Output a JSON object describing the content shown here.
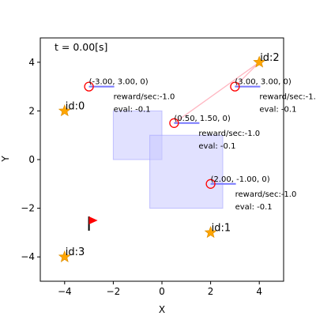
{
  "chart_data": {
    "type": "scatter",
    "time_label": "t = 0.00[s]",
    "xlabel": "X",
    "ylabel": "Y",
    "xlim": [
      -5,
      5
    ],
    "ylim": [
      -5,
      5
    ],
    "xticks": [
      -4,
      -2,
      0,
      2,
      4
    ],
    "yticks": [
      -4,
      -2,
      0,
      2,
      4
    ],
    "grid": false,
    "colors": {
      "goal": "#ffa500",
      "agent": "#ff0000",
      "heading": "#7878ff",
      "link": "#ffb6c1",
      "obstacle_fill": "#c8c8ff",
      "obstacle_edge": "#a0a0ff",
      "flag": "#ff0000"
    },
    "goals": [
      {
        "label": "id:0",
        "x": -4.0,
        "y": 2.0
      },
      {
        "label": "id:1",
        "x": 2.0,
        "y": -3.0
      },
      {
        "label": "id:2",
        "x": 4.0,
        "y": 4.0
      },
      {
        "label": "id:3",
        "x": -4.0,
        "y": -4.0
      }
    ],
    "obstacles": [
      {
        "x0": -2.0,
        "y0": 0.0,
        "x1": 0.0,
        "y1": 2.0
      },
      {
        "x0": -0.5,
        "y0": -2.0,
        "x1": 2.5,
        "y1": 1.0
      }
    ],
    "agents": [
      {
        "coord": "(-3.00, 3.00, 0)",
        "x": -3.0,
        "y": 3.0,
        "reward": "reward/sec:-1.0",
        "eval": "eval: -0.1",
        "target": null
      },
      {
        "coord": "(3.00, 3.00, 0)",
        "x": 3.0,
        "y": 3.0,
        "reward": "reward/sec:-1.0",
        "eval": "eval: -0.1",
        "target": {
          "x": 4.0,
          "y": 4.0
        }
      },
      {
        "coord": "(0.50, 1.50, 0)",
        "x": 0.5,
        "y": 1.5,
        "reward": "reward/sec:-1.0",
        "eval": "eval: -0.1",
        "target": {
          "x": 4.0,
          "y": 4.0
        }
      },
      {
        "coord": "(2.00, -1.00, 0)",
        "x": 2.0,
        "y": -1.0,
        "reward": "reward/sec:-1.0",
        "eval": "eval: -0.1",
        "target": null
      }
    ],
    "flag": {
      "x": -3.0,
      "y": -2.5
    }
  }
}
